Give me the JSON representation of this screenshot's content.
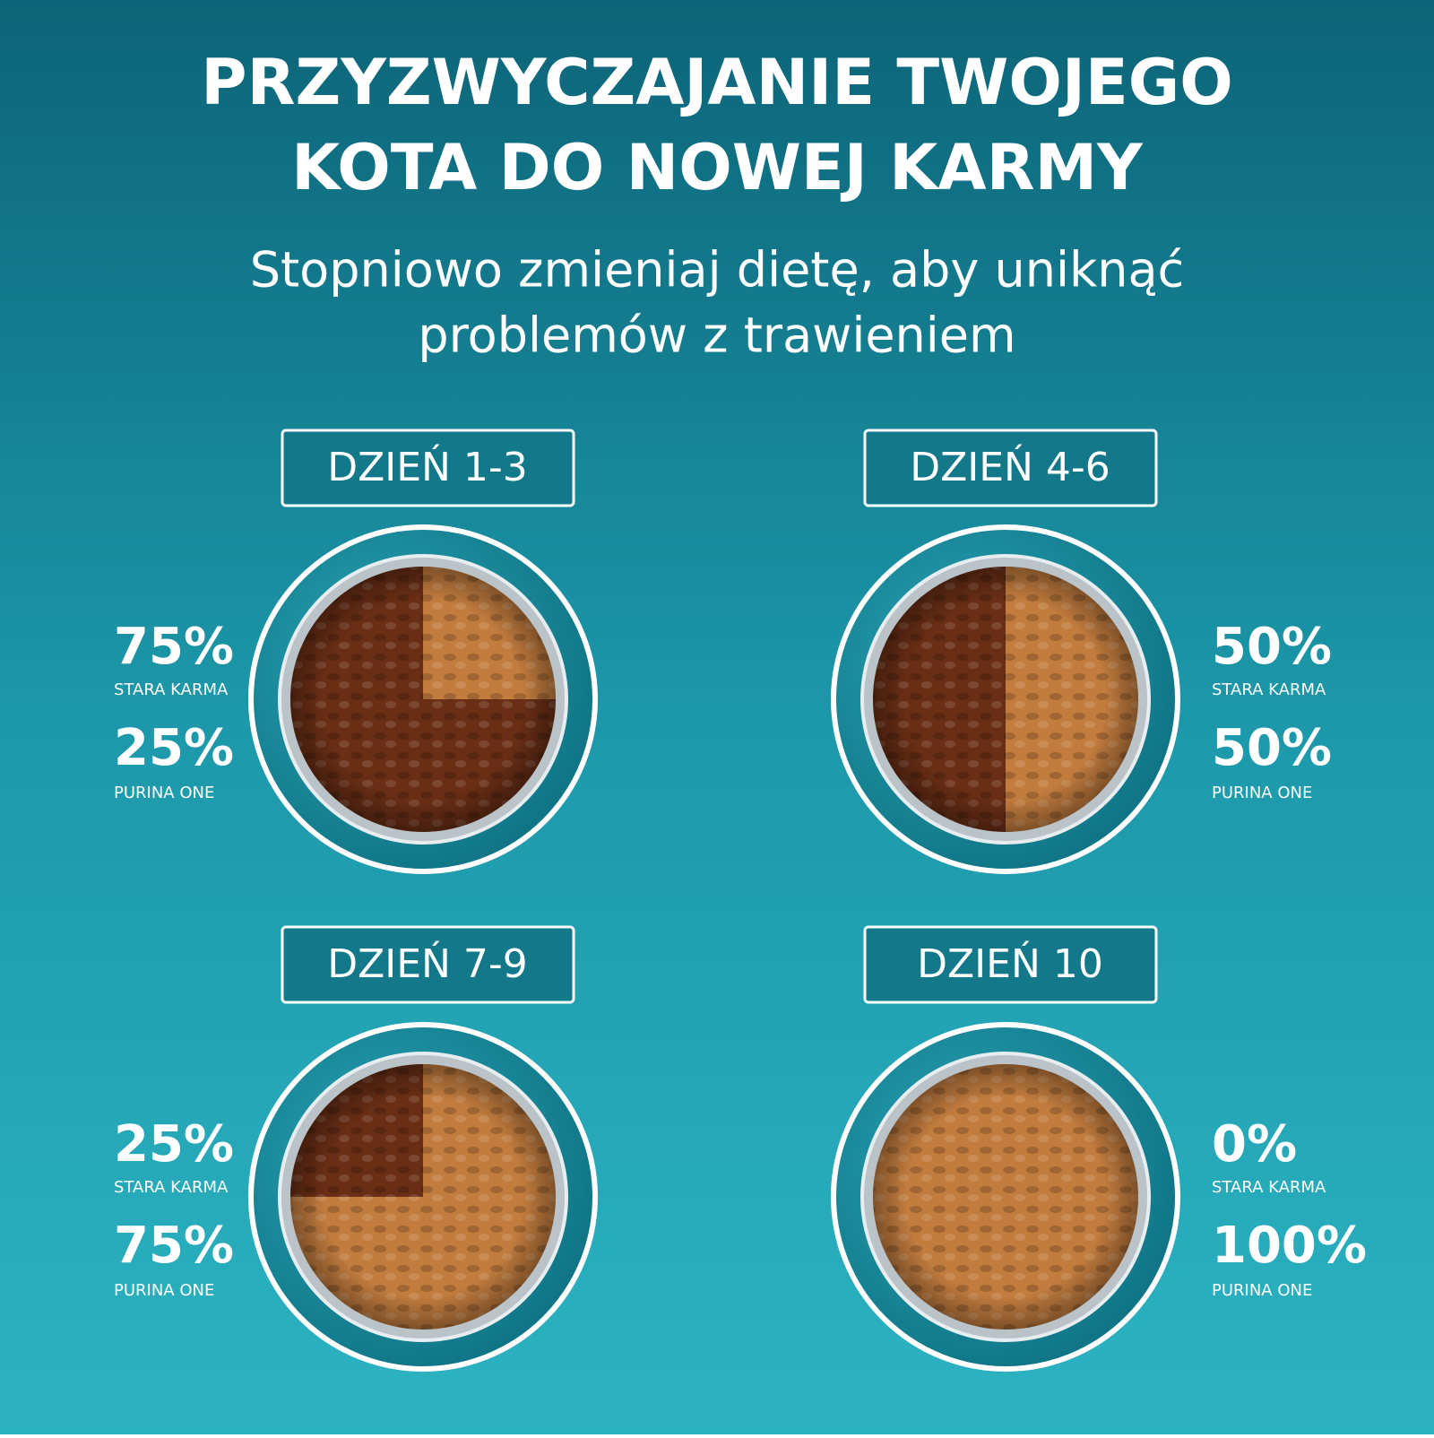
{
  "title": [
    "PRZYZWYCZAJANIE TWOJEGO",
    "KOTA DO NOWEJ KARMY"
  ],
  "subtitle": [
    "Stopniowo zmieniaj dietę, aby uniknąć",
    "problemów z trawieniem"
  ],
  "panels": [
    {
      "day": "DZIEŃ 1-3",
      "old": {
        "value": 75,
        "label": "75%"
      },
      "old_caption": "STARA KARMA",
      "new": {
        "value": 25,
        "label": "25%"
      },
      "new_caption": "PURINA ONE"
    },
    {
      "day": "DZIEŃ 4-6",
      "old": {
        "value": 50,
        "label": "50%"
      },
      "old_caption": "STARA KARMA",
      "new": {
        "value": 50,
        "label": "50%"
      },
      "new_caption": "PURINA ONE"
    },
    {
      "day": "DZIEŃ 7-9",
      "old": {
        "value": 25,
        "label": "25%"
      },
      "old_caption": "STARA KARMA",
      "new": {
        "value": 75,
        "label": "75%"
      },
      "new_caption": "PURINA ONE"
    },
    {
      "day": "DZIEŃ 10",
      "old": {
        "value": 0,
        "label": "0%"
      },
      "old_caption": "STARA KARMA",
      "new": {
        "value": 100,
        "label": "100%"
      },
      "new_caption": "PURINA ONE"
    }
  ]
}
